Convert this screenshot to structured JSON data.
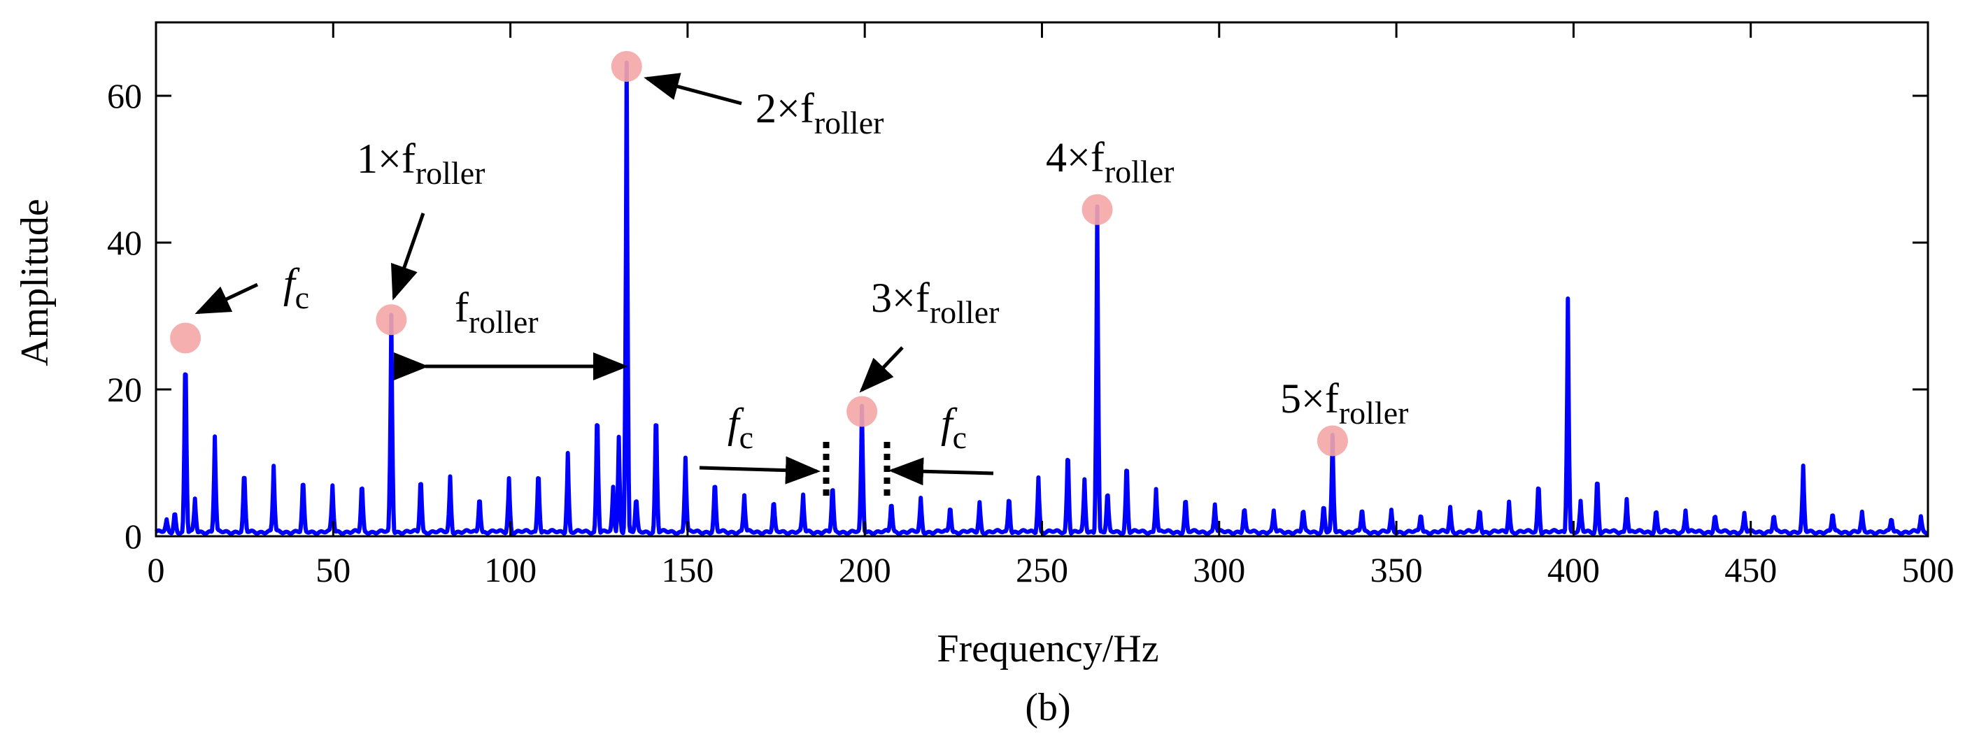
{
  "chart_data": {
    "type": "line",
    "xlabel": "Frequency/Hz",
    "ylabel": "Amplitude",
    "caption": "(b)",
    "xlim": [
      0,
      500
    ],
    "ylim": [
      0,
      70
    ],
    "xticks": [
      "0",
      "50",
      "100",
      "150",
      "200",
      "250",
      "300",
      "350",
      "400",
      "450",
      "500"
    ],
    "yticks": [
      "0",
      "20",
      "40",
      "60"
    ],
    "grid": false,
    "series_color": "#0000ff",
    "highlight_color": "#f4a6a6",
    "baseline": 0.6,
    "peaks": [
      [
        3,
        1.5
      ],
      [
        5.3,
        3.0
      ],
      [
        8.3,
        27
      ],
      [
        11,
        4.5
      ],
      [
        16.6,
        13
      ],
      [
        24.9,
        9
      ],
      [
        33.2,
        9
      ],
      [
        41.5,
        7.8
      ],
      [
        49.8,
        6.3
      ],
      [
        58.1,
        7.3
      ],
      [
        66.4,
        29.5
      ],
      [
        74.7,
        8.3
      ],
      [
        83,
        7.5
      ],
      [
        91.3,
        5.5
      ],
      [
        99.6,
        7.3
      ],
      [
        107.9,
        9.5
      ],
      [
        116.2,
        10.8
      ],
      [
        124.5,
        18.5
      ],
      [
        129,
        6
      ],
      [
        130.6,
        13
      ],
      [
        132.8,
        64
      ],
      [
        135.5,
        5
      ],
      [
        141.1,
        18.3
      ],
      [
        149.4,
        10.2
      ],
      [
        157.7,
        7.5
      ],
      [
        166,
        5
      ],
      [
        174.3,
        4.5
      ],
      [
        182.6,
        5
      ],
      [
        190.9,
        7
      ],
      [
        199.2,
        17
      ],
      [
        207.5,
        4.5
      ],
      [
        215.8,
        4.5
      ],
      [
        224.1,
        4
      ],
      [
        232.4,
        4
      ],
      [
        240.7,
        5.5
      ],
      [
        249,
        7.5
      ],
      [
        257.3,
        12.5
      ],
      [
        262,
        7
      ],
      [
        265.6,
        44.5
      ],
      [
        268.5,
        6
      ],
      [
        273.9,
        10.5
      ],
      [
        282.2,
        6
      ],
      [
        290.5,
        5
      ],
      [
        298.8,
        3.8
      ],
      [
        307.1,
        3.5
      ],
      [
        315.4,
        2.8
      ],
      [
        323.7,
        3.3
      ],
      [
        329.5,
        4
      ],
      [
        332,
        13
      ],
      [
        340.3,
        3.5
      ],
      [
        348.6,
        2.8
      ],
      [
        356.9,
        2.7
      ],
      [
        365.2,
        3.3
      ],
      [
        373.5,
        3.5
      ],
      [
        381.8,
        4.2
      ],
      [
        390.1,
        7.5
      ],
      [
        398.4,
        32
      ],
      [
        402,
        4
      ],
      [
        406.7,
        8.3
      ],
      [
        415,
        4.7
      ],
      [
        423.3,
        3.3
      ],
      [
        431.6,
        3
      ],
      [
        439.9,
        2.5
      ],
      [
        448.2,
        2.5
      ],
      [
        456.5,
        2.5
      ],
      [
        464.8,
        8.8
      ],
      [
        473.1,
        2.8
      ],
      [
        481.4,
        2.5
      ],
      [
        489.7,
        2
      ],
      [
        498,
        2
      ]
    ],
    "highlighted_points": [
      {
        "x": 8.3,
        "y": 27
      },
      {
        "x": 66.4,
        "y": 29.5
      },
      {
        "x": 132.8,
        "y": 64
      },
      {
        "x": 199.2,
        "y": 17
      },
      {
        "x": 265.6,
        "y": 44.5
      },
      {
        "x": 332,
        "y": 13
      }
    ],
    "annotations": [
      {
        "main": "f",
        "sub": "c"
      },
      {
        "main": "1×f",
        "sub": "roller"
      },
      {
        "main": "f",
        "sub": "roller"
      },
      {
        "main": "2×f",
        "sub": "roller"
      },
      {
        "main": "3×f",
        "sub": "roller"
      },
      {
        "main": "f",
        "sub": "c"
      },
      {
        "main": "f",
        "sub": "c"
      },
      {
        "main": "4×f",
        "sub": "roller"
      },
      {
        "main": "5×f",
        "sub": "roller"
      }
    ]
  }
}
